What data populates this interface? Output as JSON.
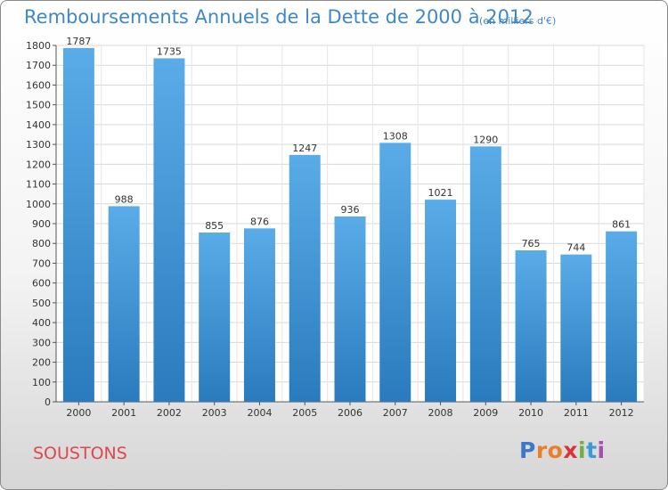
{
  "title": "Remboursements Annuels de la Dette de 2000 à 2012",
  "unit_note": "(en milliers d'€)",
  "commune": "SOUSTONS",
  "logo": {
    "letters": [
      "P",
      "r",
      "o",
      "x",
      "i",
      "t",
      "i"
    ],
    "colors": [
      "#3b78c7",
      "#e87f2a",
      "#e87f2a",
      "#d8343a",
      "#6fb043",
      "#3b9ad9",
      "#a64fb0"
    ]
  },
  "colors": {
    "bar_light": "#5aace8",
    "bar_dark": "#2a7bbd",
    "title": "#3f88c8",
    "commune": "#e0474c"
  },
  "chart_data": {
    "type": "bar",
    "title": "Remboursements Annuels de la Dette de 2000 à 2012",
    "categories": [
      "2000",
      "2001",
      "2002",
      "2003",
      "2004",
      "2005",
      "2006",
      "2007",
      "2008",
      "2009",
      "2010",
      "2011",
      "2012"
    ],
    "values": [
      1787,
      988,
      1735,
      855,
      876,
      1247,
      936,
      1308,
      1021,
      1290,
      765,
      744,
      861
    ],
    "ylim": [
      0,
      1800
    ],
    "yticks": [
      0,
      100,
      200,
      300,
      400,
      500,
      600,
      700,
      800,
      900,
      1000,
      1100,
      1200,
      1300,
      1400,
      1500,
      1600,
      1700,
      1800
    ],
    "grid": true,
    "data_labels": true
  }
}
